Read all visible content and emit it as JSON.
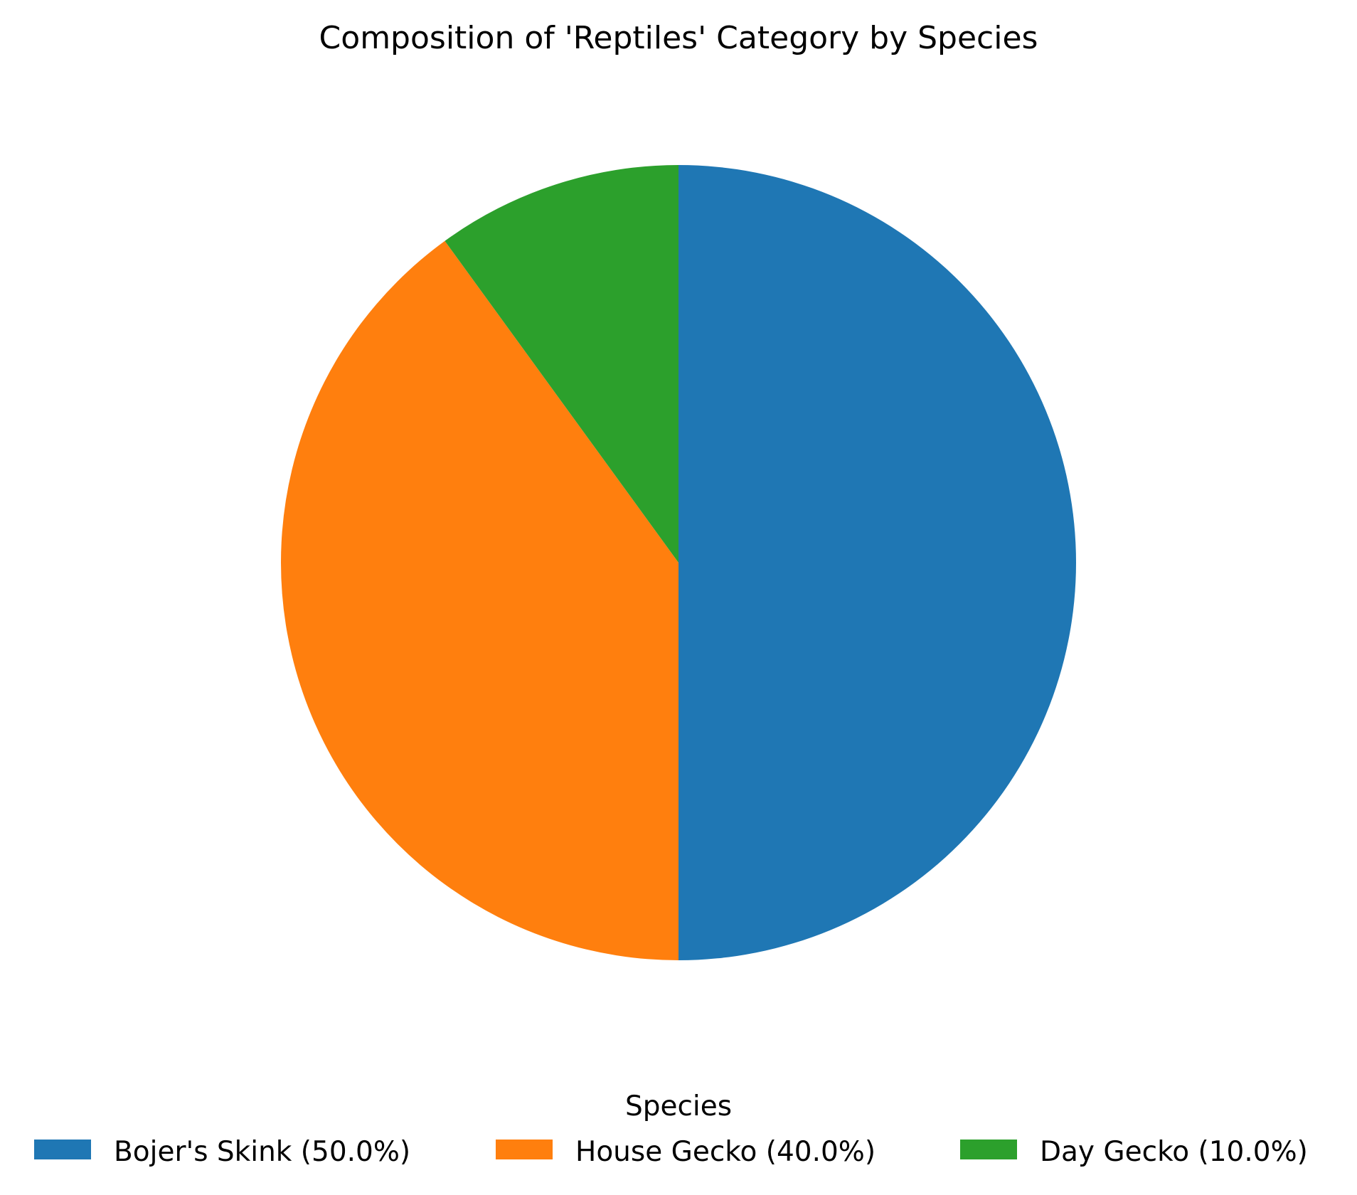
{
  "chart_data": {
    "type": "pie",
    "title": "Composition of 'Reptiles' Category by Species",
    "legend_title": "Species",
    "legend_position": "bottom-center",
    "categories": [
      "Bojer's Skink",
      "House Gecko",
      "Day Gecko"
    ],
    "values": [
      50.0,
      40.0,
      10.0
    ],
    "legend_labels": [
      "Bojer's Skink (50.0%)",
      "House Gecko (40.0%)",
      "Day Gecko (10.0%)"
    ],
    "colors": [
      "#1f77b4",
      "#ff7f0e",
      "#2ca02c"
    ],
    "start_angle_deg": 90,
    "direction": "clockwise"
  }
}
